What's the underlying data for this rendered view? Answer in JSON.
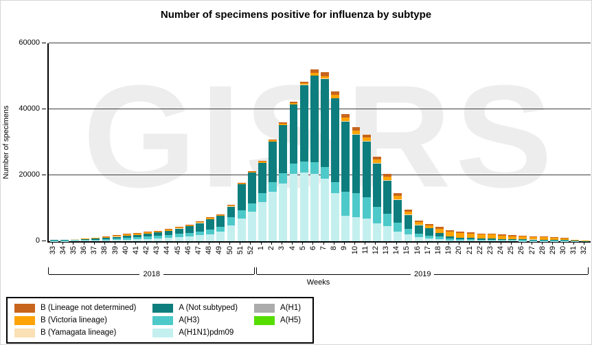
{
  "watermark": "GISRS",
  "chart_data": {
    "type": "bar",
    "stacked": true,
    "title": "Number of specimens positive for influenza by subtype",
    "xlabel": "Weeks",
    "ylabel": "Number of specimens",
    "ylim": [
      0,
      60000
    ],
    "grid": true,
    "legend_position": "bottom-left",
    "yticks": [
      {
        "value": 0,
        "label": "0"
      },
      {
        "value": 20000,
        "label": "20000"
      },
      {
        "value": 40000,
        "label": "40000"
      },
      {
        "value": 60000,
        "label": "60000"
      }
    ],
    "categories": [
      "33",
      "34",
      "35",
      "36",
      "37",
      "38",
      "39",
      "40",
      "41",
      "42",
      "43",
      "44",
      "45",
      "46",
      "47",
      "48",
      "49",
      "50",
      "51",
      "52",
      "1",
      "2",
      "3",
      "4",
      "5",
      "6",
      "7",
      "8",
      "9",
      "10",
      "11",
      "12",
      "13",
      "14",
      "15",
      "16",
      "17",
      "18",
      "19",
      "20",
      "21",
      "22",
      "23",
      "24",
      "25",
      "26",
      "27",
      "28",
      "29",
      "30",
      "31",
      "32"
    ],
    "year_groups": [
      {
        "label": "2018",
        "from": 0,
        "to": 19
      },
      {
        "label": "2019",
        "from": 20,
        "to": 51
      }
    ],
    "series": [
      {
        "name": "A(H1N1)pdm09",
        "color": "#C4EFEF",
        "values": [
          100,
          100,
          120,
          150,
          200,
          250,
          350,
          450,
          550,
          700,
          800,
          950,
          1200,
          1500,
          1800,
          2100,
          2900,
          4800,
          6900,
          9000,
          11900,
          15000,
          17500,
          20400,
          20800,
          20500,
          19000,
          14600,
          7700,
          7300,
          6800,
          5500,
          4500,
          3000,
          2000,
          1200,
          800,
          600,
          300,
          200,
          180,
          150,
          150,
          120,
          110,
          100,
          90,
          85,
          70,
          60,
          20,
          5
        ]
      },
      {
        "name": "A(H3)",
        "color": "#4EC9C9",
        "values": [
          150,
          150,
          200,
          250,
          300,
          400,
          500,
          600,
          650,
          750,
          800,
          900,
          1000,
          1100,
          1200,
          1400,
          1500,
          2500,
          2500,
          2500,
          2700,
          3000,
          3200,
          3100,
          3300,
          3500,
          3500,
          3300,
          7300,
          7300,
          6500,
          5000,
          3800,
          2600,
          1700,
          1100,
          900,
          800,
          500,
          450,
          420,
          350,
          350,
          300,
          270,
          250,
          220,
          200,
          170,
          140,
          60,
          15
        ]
      },
      {
        "name": "A (Not subtyped)",
        "color": "#0E7D7D",
        "values": [
          150,
          160,
          200,
          250,
          300,
          400,
          500,
          650,
          750,
          900,
          1050,
          1300,
          1650,
          2000,
          2500,
          3200,
          3300,
          3200,
          7800,
          9250,
          9200,
          12200,
          14500,
          18000,
          23300,
          26200,
          26750,
          25350,
          21300,
          17800,
          16900,
          13100,
          10100,
          7000,
          4300,
          2600,
          2200,
          1100,
          600,
          450,
          400,
          350,
          330,
          280,
          250,
          240,
          210,
          200,
          170,
          140,
          70,
          20
        ]
      },
      {
        "name": "A(H1)",
        "color": "#ABABAB",
        "values": [
          0,
          0,
          0,
          0,
          0,
          0,
          0,
          0,
          0,
          0,
          0,
          0,
          0,
          0,
          0,
          0,
          0,
          0,
          0,
          0,
          0,
          0,
          0,
          0,
          0,
          0,
          0,
          0,
          0,
          0,
          0,
          0,
          0,
          0,
          0,
          0,
          0,
          0,
          0,
          0,
          0,
          0,
          0,
          0,
          0,
          0,
          0,
          0,
          0,
          0,
          0,
          0
        ]
      },
      {
        "name": "A(H5)",
        "color": "#55DD00",
        "values": [
          0,
          0,
          0,
          0,
          0,
          0,
          0,
          0,
          0,
          0,
          0,
          0,
          0,
          0,
          0,
          0,
          0,
          0,
          0,
          0,
          0,
          0,
          0,
          0,
          0,
          0,
          0,
          0,
          0,
          0,
          0,
          0,
          0,
          0,
          0,
          0,
          0,
          0,
          0,
          0,
          0,
          0,
          0,
          0,
          0,
          0,
          0,
          0,
          0,
          0,
          0,
          0
        ]
      },
      {
        "name": "B (Yamagata lineage)",
        "color": "#FAE0B4",
        "values": [
          10,
          10,
          10,
          15,
          15,
          20,
          25,
          30,
          30,
          30,
          30,
          30,
          30,
          30,
          30,
          30,
          30,
          30,
          30,
          50,
          50,
          50,
          50,
          50,
          50,
          100,
          100,
          150,
          150,
          150,
          150,
          120,
          100,
          80,
          60,
          50,
          40,
          40,
          30,
          30,
          30,
          25,
          25,
          20,
          20,
          20,
          15,
          15,
          15,
          10,
          5,
          0
        ]
      },
      {
        "name": "B (Victoria lineage)",
        "color": "#FFA305",
        "values": [
          50,
          60,
          90,
          130,
          160,
          200,
          250,
          280,
          320,
          320,
          320,
          320,
          320,
          270,
          270,
          270,
          270,
          270,
          270,
          300,
          300,
          350,
          400,
          400,
          400,
          700,
          750,
          900,
          1100,
          1100,
          1100,
          1100,
          1100,
          1100,
          950,
          850,
          850,
          1300,
          1450,
          1400,
          1300,
          1125,
          1145,
          950,
          850,
          810,
          715,
          670,
          575,
          480,
          245,
          75
        ]
      },
      {
        "name": "B (Lineage not determined)",
        "color": "#C8651D",
        "values": [
          40,
          40,
          80,
          105,
          125,
          130,
          175,
          190,
          200,
          200,
          200,
          200,
          200,
          200,
          200,
          200,
          200,
          200,
          200,
          200,
          250,
          300,
          350,
          350,
          450,
          1100,
          1100,
          1100,
          950,
          850,
          850,
          780,
          800,
          720,
          490,
          400,
          410,
          560,
          520,
          470,
          470,
          400,
          400,
          330,
          300,
          280,
          250,
          230,
          200,
          170,
          100,
          35
        ]
      }
    ]
  },
  "legend": {
    "items": [
      {
        "label": "B (Lineage not determined)",
        "color": "#C8651D",
        "col": 0
      },
      {
        "label": "B (Victoria lineage)",
        "color": "#FFA305",
        "col": 0
      },
      {
        "label": "B (Yamagata lineage)",
        "color": "#FAE0B4",
        "col": 0
      },
      {
        "label": "A (Not subtyped)",
        "color": "#0E7D7D",
        "col": 1
      },
      {
        "label": "A(H3)",
        "color": "#4EC9C9",
        "col": 1
      },
      {
        "label": "A(H1N1)pdm09",
        "color": "#C4EFEF",
        "col": 1
      },
      {
        "label": "A(H1)",
        "color": "#ABABAB",
        "col": 2
      },
      {
        "label": "A(H5)",
        "color": "#55DD00",
        "col": 2
      }
    ]
  }
}
